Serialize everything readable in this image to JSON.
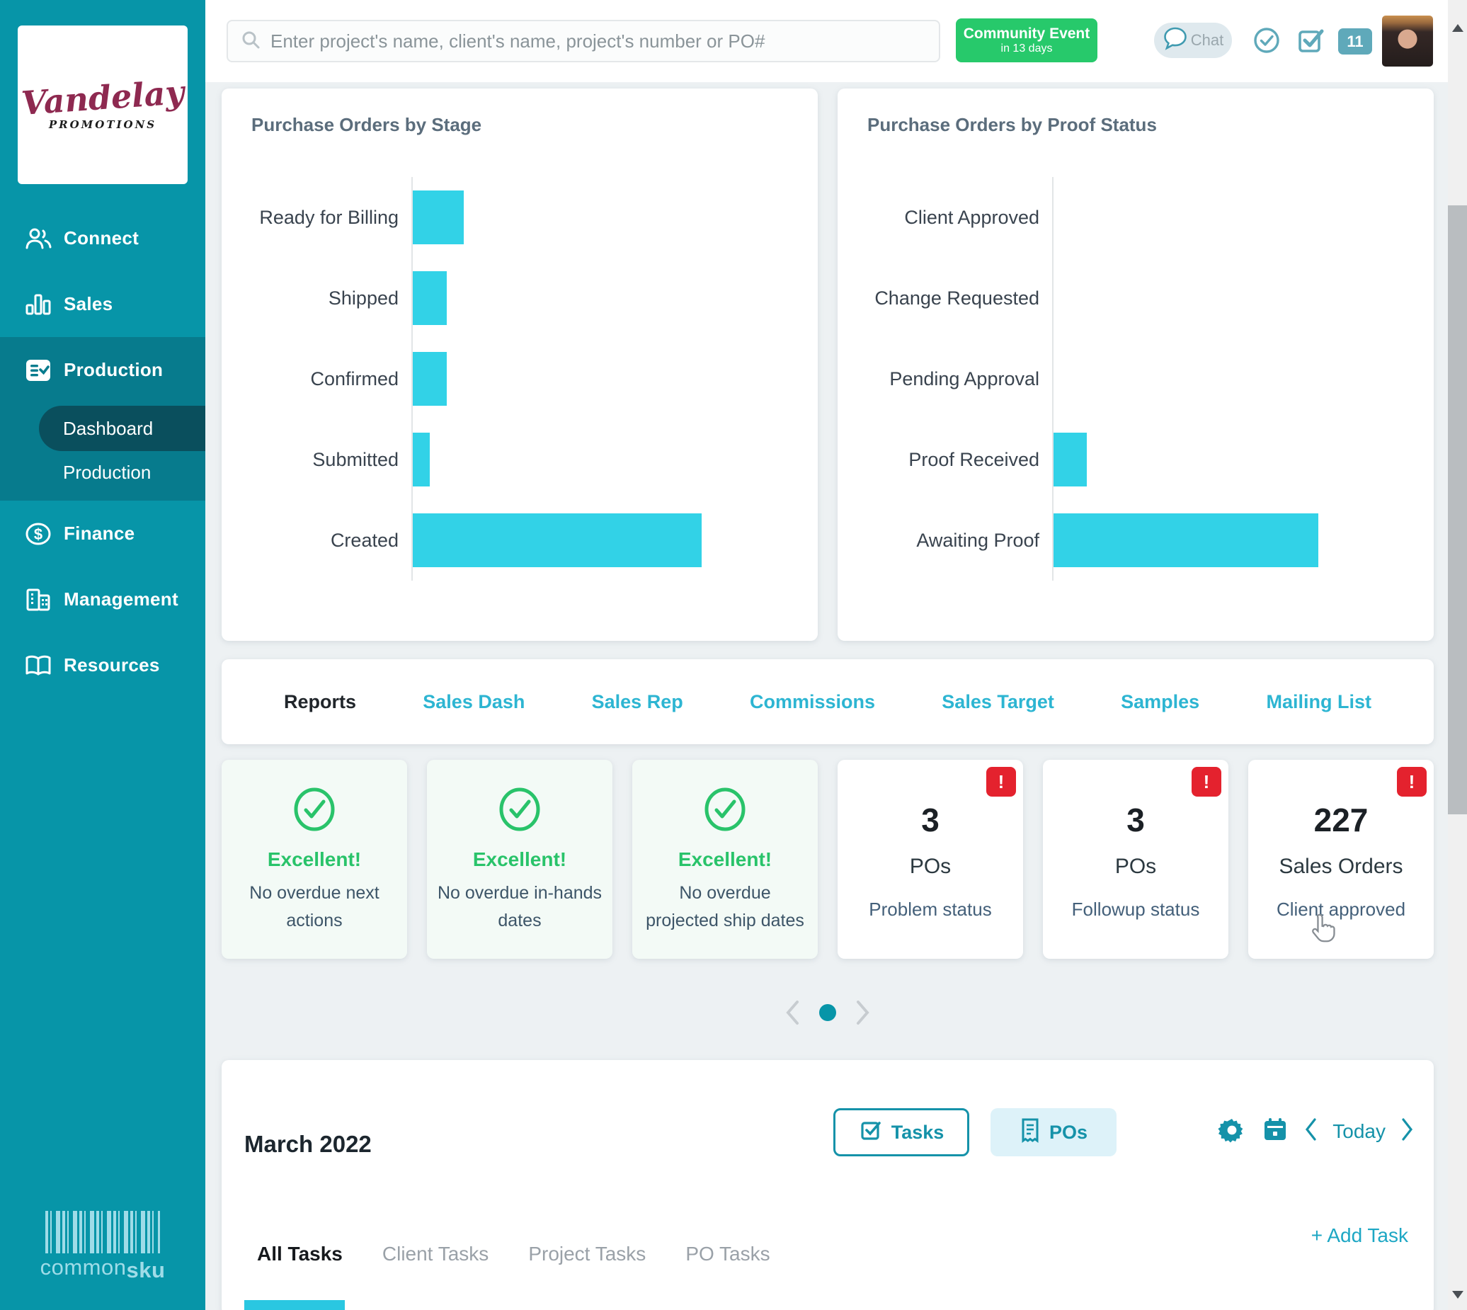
{
  "brand": {
    "name": "Vandelay",
    "tagline": "PROMOTIONS",
    "footer_logo_part1": "common",
    "footer_logo_part2": "sku"
  },
  "sidebar": {
    "items": [
      {
        "label": "Connect"
      },
      {
        "label": "Sales"
      },
      {
        "label": "Production"
      },
      {
        "label": "Finance"
      },
      {
        "label": "Management"
      },
      {
        "label": "Resources"
      }
    ],
    "sub_items": [
      {
        "label": "Dashboard"
      },
      {
        "label": "Production"
      }
    ]
  },
  "topbar": {
    "search_placeholder": "Enter project's name, client's name, project's number or PO#",
    "event_line1": "Community Event",
    "event_line2": "in 13 days",
    "chat_label": "Chat",
    "notification_count": "11"
  },
  "chart_data": [
    {
      "type": "bar",
      "orientation": "horizontal",
      "title": "Purchase Orders by Stage",
      "categories": [
        "Ready for Billing",
        "Shipped",
        "Confirmed",
        "Submitted",
        "Created"
      ],
      "values": [
        6,
        4,
        4,
        2,
        34
      ],
      "xlim": [
        0,
        35
      ],
      "grid": false,
      "bar_color": "#32d2e7"
    },
    {
      "type": "bar",
      "orientation": "horizontal",
      "title": "Purchase Orders by Proof Status",
      "categories": [
        "Client Approved",
        "Change Requested",
        "Pending Approval",
        "Proof Received",
        "Awaiting Proof"
      ],
      "values": [
        0,
        0,
        0,
        4,
        32
      ],
      "xlim": [
        0,
        35
      ],
      "grid": false,
      "bar_color": "#32d2e7"
    }
  ],
  "report_tabs": [
    "Reports",
    "Sales Dash",
    "Sales Rep",
    "Commissions",
    "Sales Target",
    "Samples",
    "Mailing List"
  ],
  "status_cards": [
    {
      "kind": "ok",
      "title": "Excellent!",
      "text": "No overdue next actions"
    },
    {
      "kind": "ok",
      "title": "Excellent!",
      "text": "No overdue in-hands dates"
    },
    {
      "kind": "ok",
      "title": "Excellent!",
      "text": "No overdue projected ship dates"
    },
    {
      "kind": "alert",
      "badge": "!",
      "value": "3",
      "label": "POs",
      "sub": "Problem status"
    },
    {
      "kind": "alert",
      "badge": "!",
      "value": "3",
      "label": "POs",
      "sub": "Followup status"
    },
    {
      "kind": "alert",
      "badge": "!",
      "value": "227",
      "label": "Sales Orders",
      "sub": "Client approved"
    }
  ],
  "calendar": {
    "month_title": "March 2022",
    "tasks_button": "Tasks",
    "pos_button": "POs",
    "today_label": "Today",
    "task_tabs": [
      "All Tasks",
      "Client Tasks",
      "Project Tasks",
      "PO Tasks"
    ],
    "add_task_label": "+ Add Task"
  },
  "colors": {
    "sidebar": "#0795a8",
    "sidebar_active": "#077b8d",
    "sidebar_pill": "#0a4f5d",
    "accent_teal": "#1592a9",
    "tab_cyan": "#2db5d2",
    "bar_cyan": "#32d2e7",
    "event_green": "#27c96b",
    "success_green": "#29c36a",
    "alert_red": "#e4222e",
    "icon_teal": "#5fa9ba"
  }
}
